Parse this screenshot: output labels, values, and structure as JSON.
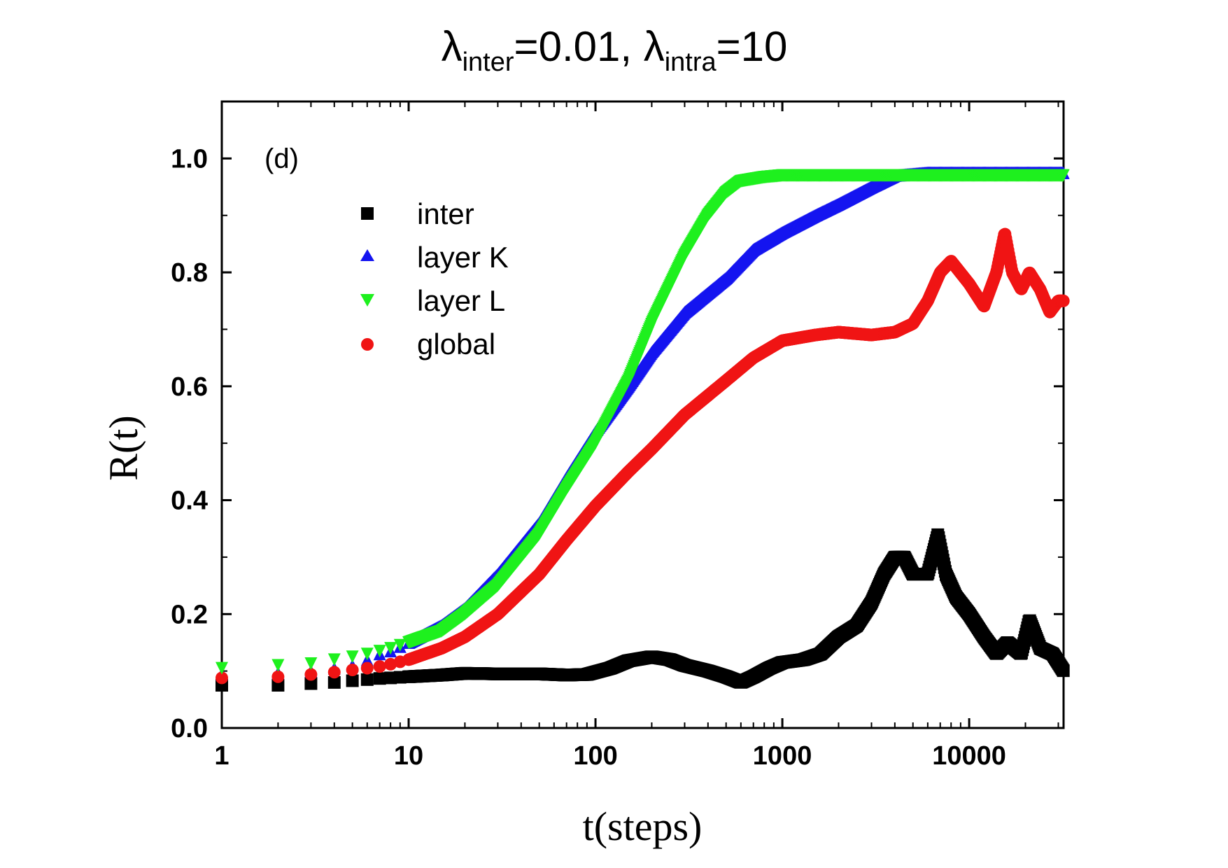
{
  "chart_data": {
    "type": "scatter",
    "title": {
      "symbol": "λ",
      "sub1": "inter",
      "eq1": "=0.01, ",
      "sub2": "intra",
      "eq2": "=10"
    },
    "panel_label": "(d)",
    "xlabel": "t(steps)",
    "ylabel": "R(t)",
    "xscale": "log",
    "xlim": [
      1,
      32000
    ],
    "ylim": [
      0,
      1.1
    ],
    "xticks": [
      1,
      10,
      100,
      1000,
      10000
    ],
    "xtick_labels": [
      "1",
      "10",
      "100",
      "1000",
      "10000"
    ],
    "yticks": [
      0.0,
      0.2,
      0.4,
      0.6,
      0.8,
      1.0
    ],
    "ytick_labels": [
      "0.0",
      "0.2",
      "0.4",
      "0.6",
      "0.8",
      "1.0"
    ],
    "legend_position": "upper-left",
    "series": [
      {
        "name": "inter",
        "marker": "square",
        "color": "#000000",
        "points": [
          [
            1,
            0.075
          ],
          [
            2,
            0.075
          ],
          [
            3,
            0.078
          ],
          [
            4,
            0.08
          ],
          [
            5,
            0.083
          ],
          [
            6,
            0.085
          ],
          [
            7,
            0.087
          ],
          [
            8,
            0.088
          ],
          [
            10,
            0.09
          ],
          [
            15,
            0.093
          ],
          [
            20,
            0.096
          ],
          [
            30,
            0.095
          ],
          [
            50,
            0.095
          ],
          [
            70,
            0.093
          ],
          [
            90,
            0.094
          ],
          [
            120,
            0.105
          ],
          [
            150,
            0.118
          ],
          [
            200,
            0.125
          ],
          [
            250,
            0.12
          ],
          [
            300,
            0.11
          ],
          [
            400,
            0.1
          ],
          [
            500,
            0.09
          ],
          [
            600,
            0.08
          ],
          [
            700,
            0.09
          ],
          [
            850,
            0.105
          ],
          [
            1000,
            0.115
          ],
          [
            1300,
            0.12
          ],
          [
            1600,
            0.13
          ],
          [
            2000,
            0.16
          ],
          [
            2500,
            0.18
          ],
          [
            3000,
            0.22
          ],
          [
            3500,
            0.27
          ],
          [
            4000,
            0.3
          ],
          [
            4500,
            0.3
          ],
          [
            5000,
            0.27
          ],
          [
            6000,
            0.27
          ],
          [
            6800,
            0.34
          ],
          [
            7500,
            0.27
          ],
          [
            8500,
            0.23
          ],
          [
            10000,
            0.2
          ],
          [
            12000,
            0.16
          ],
          [
            14000,
            0.13
          ],
          [
            16000,
            0.15
          ],
          [
            19000,
            0.13
          ],
          [
            21000,
            0.19
          ],
          [
            24000,
            0.14
          ],
          [
            28000,
            0.13
          ],
          [
            32000,
            0.1
          ]
        ]
      },
      {
        "name": "layer K",
        "marker": "triangle-up",
        "color": "#1414f0",
        "points": [
          [
            1,
            0.095
          ],
          [
            2,
            0.097
          ],
          [
            3,
            0.1
          ],
          [
            4,
            0.105
          ],
          [
            5,
            0.11
          ],
          [
            6,
            0.12
          ],
          [
            7,
            0.13
          ],
          [
            8,
            0.135
          ],
          [
            10,
            0.15
          ],
          [
            15,
            0.18
          ],
          [
            20,
            0.21
          ],
          [
            30,
            0.27
          ],
          [
            50,
            0.36
          ],
          [
            70,
            0.44
          ],
          [
            100,
            0.52
          ],
          [
            150,
            0.6
          ],
          [
            200,
            0.66
          ],
          [
            300,
            0.73
          ],
          [
            500,
            0.79
          ],
          [
            700,
            0.84
          ],
          [
            1000,
            0.87
          ],
          [
            1500,
            0.9
          ],
          [
            2000,
            0.92
          ],
          [
            3000,
            0.95
          ],
          [
            4000,
            0.97
          ],
          [
            6000,
            0.975
          ],
          [
            10000,
            0.975
          ],
          [
            20000,
            0.975
          ],
          [
            32000,
            0.975
          ]
        ]
      },
      {
        "name": "layer L",
        "marker": "triangle-down",
        "color": "#1ef01e",
        "points": [
          [
            1,
            0.105
          ],
          [
            2,
            0.11
          ],
          [
            3,
            0.113
          ],
          [
            4,
            0.12
          ],
          [
            5,
            0.125
          ],
          [
            6,
            0.13
          ],
          [
            7,
            0.135
          ],
          [
            8,
            0.14
          ],
          [
            10,
            0.15
          ],
          [
            15,
            0.17
          ],
          [
            20,
            0.2
          ],
          [
            30,
            0.25
          ],
          [
            50,
            0.34
          ],
          [
            70,
            0.42
          ],
          [
            100,
            0.5
          ],
          [
            150,
            0.61
          ],
          [
            200,
            0.71
          ],
          [
            300,
            0.83
          ],
          [
            400,
            0.9
          ],
          [
            500,
            0.94
          ],
          [
            600,
            0.96
          ],
          [
            800,
            0.967
          ],
          [
            1000,
            0.97
          ],
          [
            2000,
            0.97
          ],
          [
            5000,
            0.97
          ],
          [
            10000,
            0.97
          ],
          [
            20000,
            0.97
          ],
          [
            32000,
            0.97
          ]
        ]
      },
      {
        "name": "global",
        "marker": "circle",
        "color": "#f01414",
        "points": [
          [
            1,
            0.088
          ],
          [
            2,
            0.09
          ],
          [
            3,
            0.094
          ],
          [
            4,
            0.098
          ],
          [
            5,
            0.102
          ],
          [
            6,
            0.105
          ],
          [
            7,
            0.108
          ],
          [
            8,
            0.112
          ],
          [
            10,
            0.12
          ],
          [
            15,
            0.14
          ],
          [
            20,
            0.16
          ],
          [
            30,
            0.2
          ],
          [
            50,
            0.27
          ],
          [
            70,
            0.33
          ],
          [
            100,
            0.39
          ],
          [
            150,
            0.45
          ],
          [
            200,
            0.49
          ],
          [
            300,
            0.55
          ],
          [
            500,
            0.61
          ],
          [
            700,
            0.65
          ],
          [
            1000,
            0.68
          ],
          [
            1500,
            0.69
          ],
          [
            2000,
            0.695
          ],
          [
            3000,
            0.69
          ],
          [
            4000,
            0.695
          ],
          [
            5000,
            0.71
          ],
          [
            6000,
            0.75
          ],
          [
            7000,
            0.8
          ],
          [
            8000,
            0.82
          ],
          [
            10000,
            0.78
          ],
          [
            12000,
            0.74
          ],
          [
            14000,
            0.8
          ],
          [
            15500,
            0.87
          ],
          [
            17000,
            0.8
          ],
          [
            19000,
            0.77
          ],
          [
            21000,
            0.8
          ],
          [
            24000,
            0.77
          ],
          [
            27000,
            0.73
          ],
          [
            30000,
            0.75
          ],
          [
            32000,
            0.75
          ]
        ]
      }
    ]
  }
}
